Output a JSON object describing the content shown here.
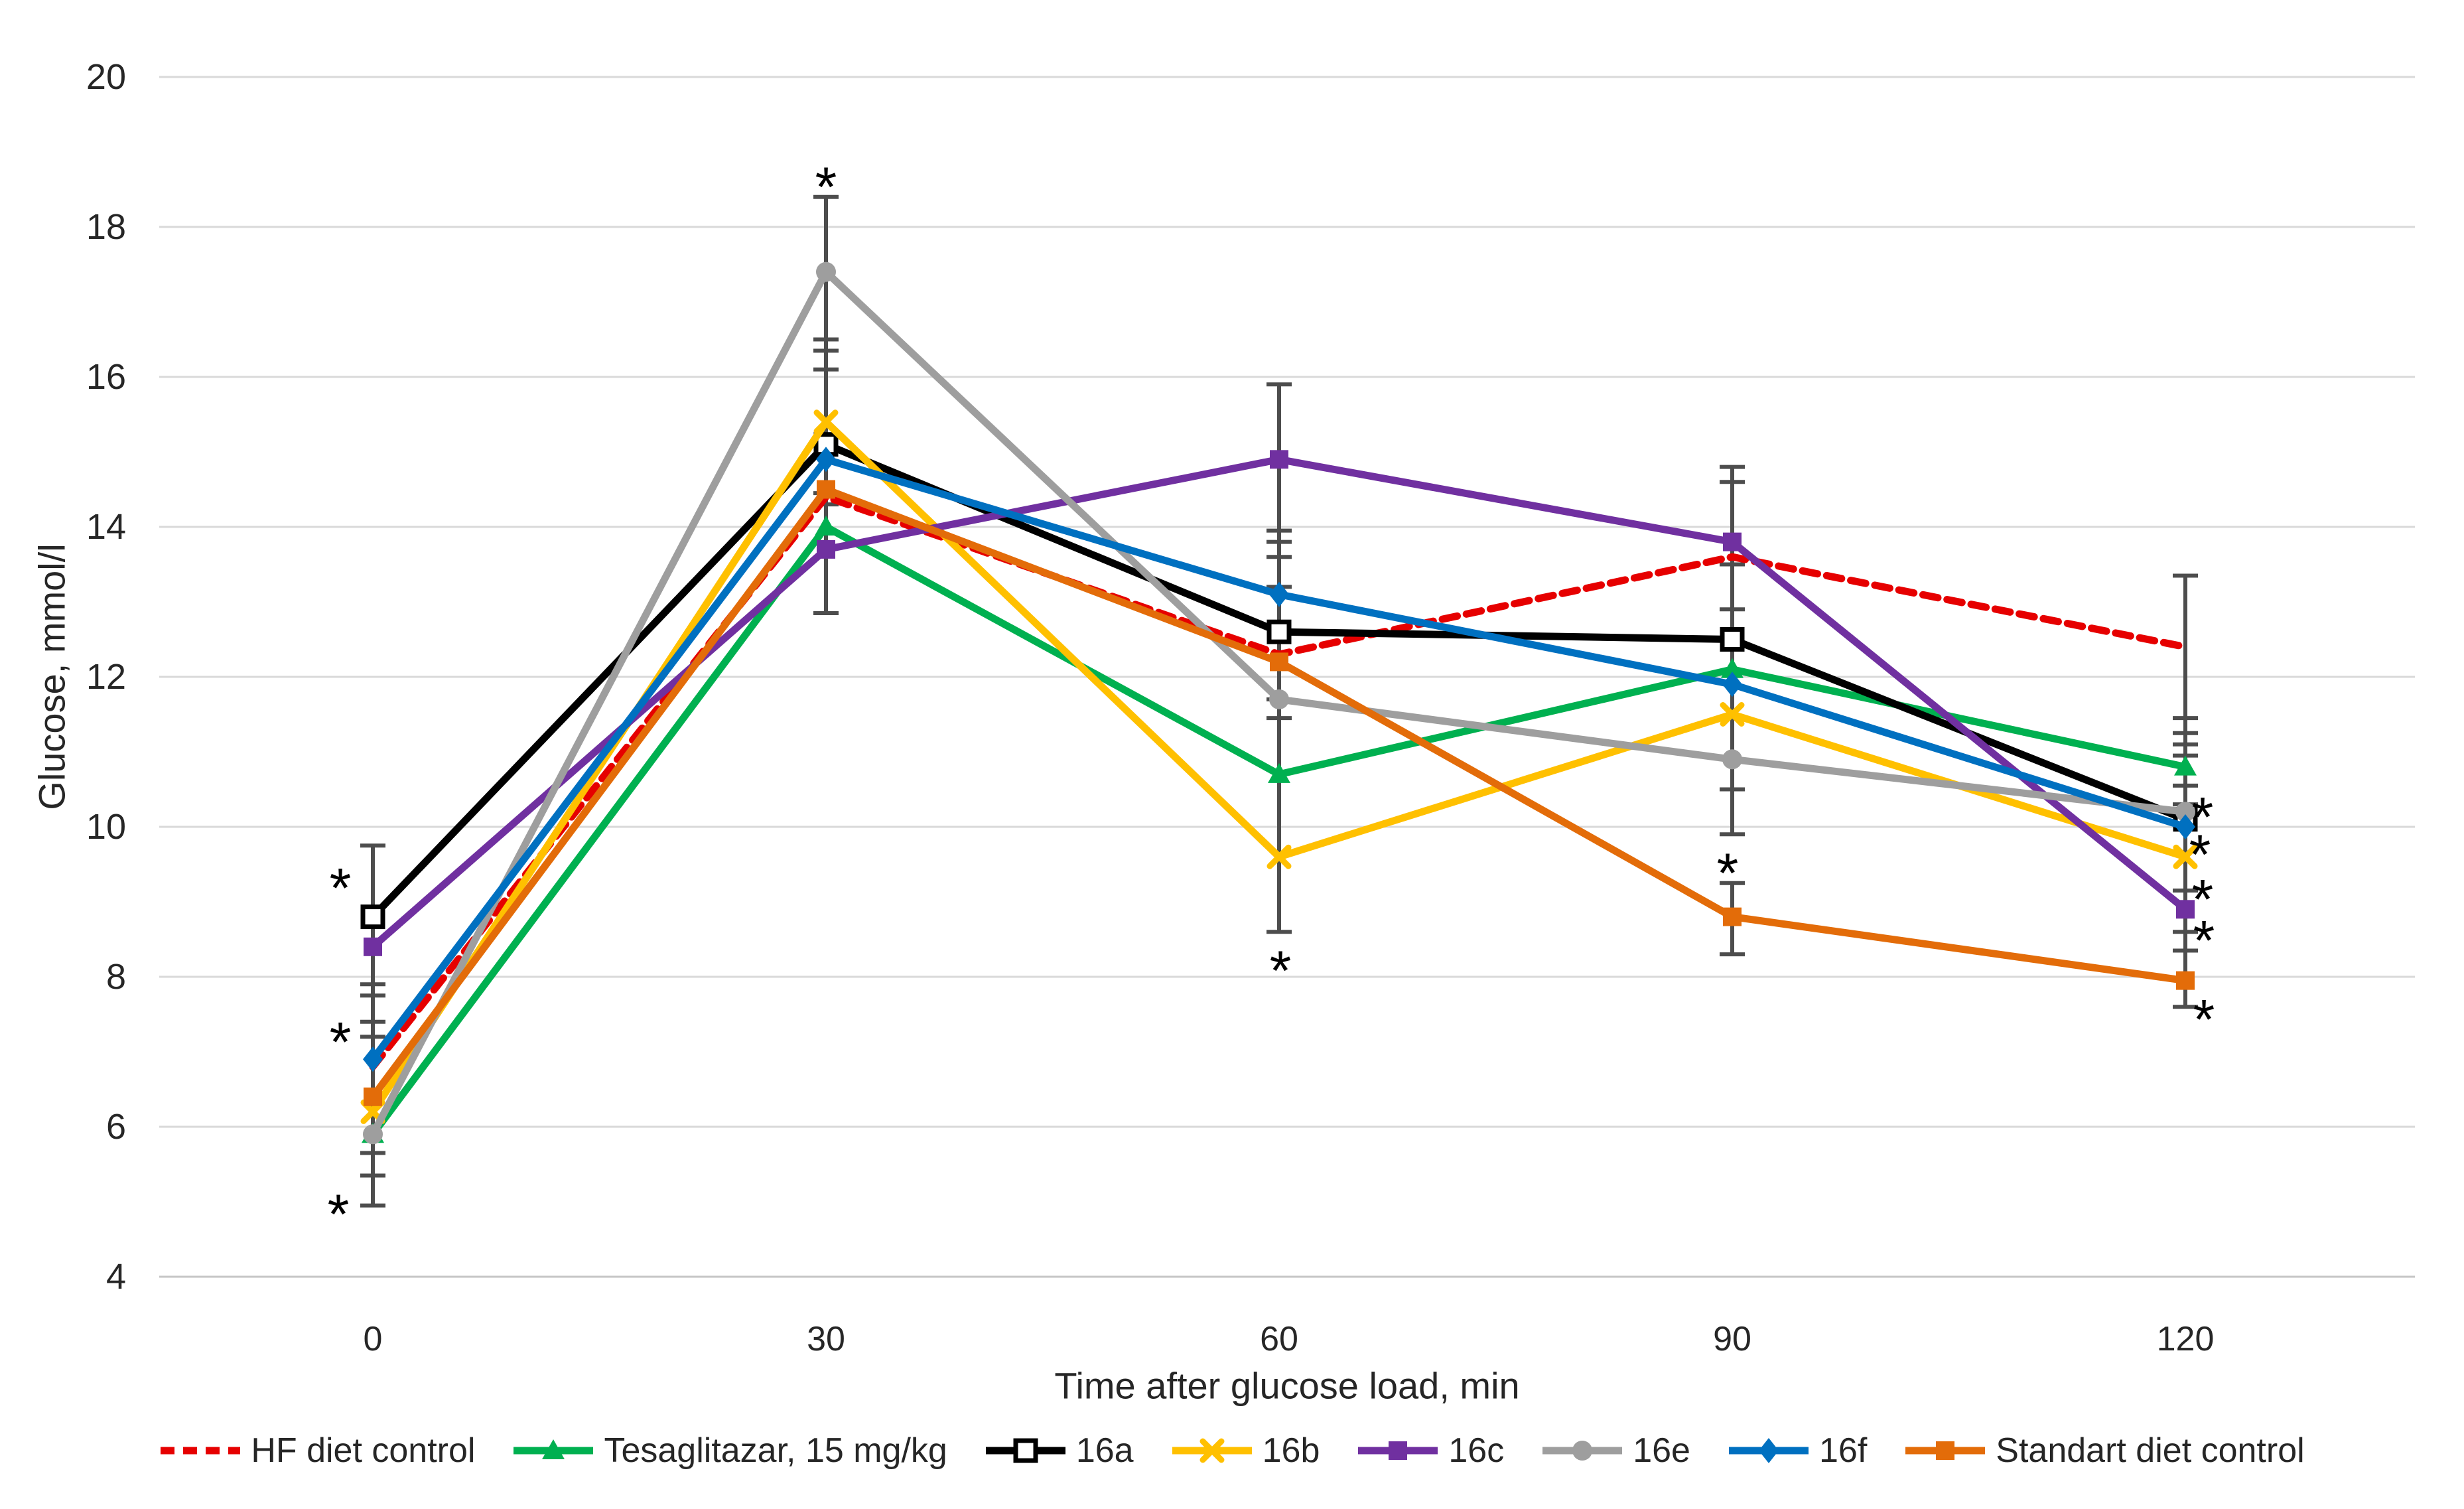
{
  "figure": {
    "background": "#ffffff"
  },
  "axes": {
    "y": {
      "title": "Glucose, mmol/l",
      "min": 4,
      "max": 20,
      "tick_step": 2,
      "ticks": [
        20,
        18,
        16,
        14,
        12,
        10,
        8,
        6,
        4
      ]
    },
    "x": {
      "title": "Time after glucose load, min",
      "tick_labels": [
        "0",
        "30",
        "60",
        "90",
        "120"
      ]
    }
  },
  "chart_data": {
    "type": "line",
    "title": "",
    "xlabel": "Time after glucose load, min",
    "ylabel": "Glucose, mmol/l",
    "ylim": [
      4,
      20
    ],
    "grid": true,
    "legend_position": "bottom",
    "x": [
      0,
      30,
      60,
      90,
      120
    ],
    "series": [
      {
        "name": "HF diet control",
        "color": "#E60000",
        "line_style": "dashed",
        "marker": "none",
        "values": [
          6.8,
          14.4,
          12.3,
          13.6,
          12.4
        ]
      },
      {
        "name": "Tesaglitazar, 15 mg/kg",
        "color": "#00B050",
        "line_style": "solid",
        "marker": "triangle",
        "values": [
          5.9,
          14.0,
          10.7,
          12.1,
          10.8
        ]
      },
      {
        "name": "16a",
        "color": "#000000",
        "line_style": "solid",
        "marker": "open-square",
        "values": [
          8.8,
          15.1,
          12.6,
          12.5,
          10.1
        ]
      },
      {
        "name": "16b",
        "color": "#FFC000",
        "line_style": "solid",
        "marker": "x",
        "values": [
          6.2,
          15.4,
          9.6,
          11.5,
          9.6
        ]
      },
      {
        "name": "16c",
        "color": "#7030A0",
        "line_style": "solid",
        "marker": "square",
        "values": [
          8.4,
          13.7,
          14.9,
          13.8,
          8.9
        ]
      },
      {
        "name": "16e",
        "color": "#9E9E9E",
        "line_style": "solid",
        "marker": "circle",
        "values": [
          5.9,
          17.4,
          11.7,
          10.9,
          10.2
        ]
      },
      {
        "name": "16f",
        "color": "#0070C0",
        "line_style": "solid",
        "marker": "diamond",
        "values": [
          6.9,
          14.9,
          13.1,
          11.9,
          10.0
        ]
      },
      {
        "name": "Standart diet control",
        "color": "#E36C09",
        "line_style": "solid",
        "marker": "square",
        "values": [
          6.4,
          14.5,
          12.2,
          8.8,
          7.95
        ]
      }
    ],
    "error_bars": [
      {
        "x_index": 0,
        "top": 9.75,
        "bottom": 4.95,
        "caps": [
          9.75,
          7.9,
          7.75,
          7.4,
          7.2,
          5.65,
          5.35,
          4.95
        ]
      },
      {
        "x_index": 1,
        "top": 18.4,
        "bottom": 12.85,
        "caps": [
          18.4,
          16.5,
          16.35,
          16.1,
          14.45,
          14.3,
          12.85
        ]
      },
      {
        "x_index": 2,
        "top": 15.9,
        "bottom": 8.6,
        "caps": [
          15.9,
          13.95,
          13.8,
          13.6,
          13.2,
          11.7,
          11.45,
          8.6
        ]
      },
      {
        "x_index": 3,
        "top": 14.8,
        "bottom": 9.9,
        "caps": [
          14.8,
          14.6,
          13.5,
          12.9,
          10.5,
          9.9
        ]
      },
      {
        "x_index": 3,
        "top": 9.25,
        "bottom": 8.3,
        "caps": [
          9.25,
          8.3
        ]
      },
      {
        "x_index": 4,
        "top": 13.35,
        "bottom": 7.6,
        "caps": [
          13.35,
          11.45,
          11.25,
          11.1,
          10.95,
          10.55,
          10.3,
          9.15,
          8.6,
          8.35,
          7.6
        ]
      }
    ],
    "significance_marks": [
      {
        "x_index": 0,
        "value": 9.3,
        "dx": -49
      },
      {
        "x_index": 0,
        "value": 7.25,
        "dx": -49
      },
      {
        "x_index": 0,
        "value": 4.95,
        "dx": -52
      },
      {
        "x_index": 1,
        "value": 18.65,
        "dx": 0
      },
      {
        "x_index": 2,
        "value": 8.2,
        "dx": 2
      },
      {
        "x_index": 3,
        "value": 9.5,
        "dx": -7
      },
      {
        "x_index": 4,
        "value": 10.25,
        "dx": 26
      },
      {
        "x_index": 4,
        "value": 9.75,
        "dx": 22
      },
      {
        "x_index": 4,
        "value": 9.15,
        "dx": 26
      },
      {
        "x_index": 4,
        "value": 8.6,
        "dx": 28
      },
      {
        "x_index": 4,
        "value": 7.55,
        "dx": 28
      }
    ]
  },
  "styles": {
    "grid_color": "#D9D9D9",
    "axis_line_color": "#C6C6C6",
    "error_bar_color": "#4D4D4D",
    "text_color": "#262626",
    "significance_symbol": "*"
  }
}
